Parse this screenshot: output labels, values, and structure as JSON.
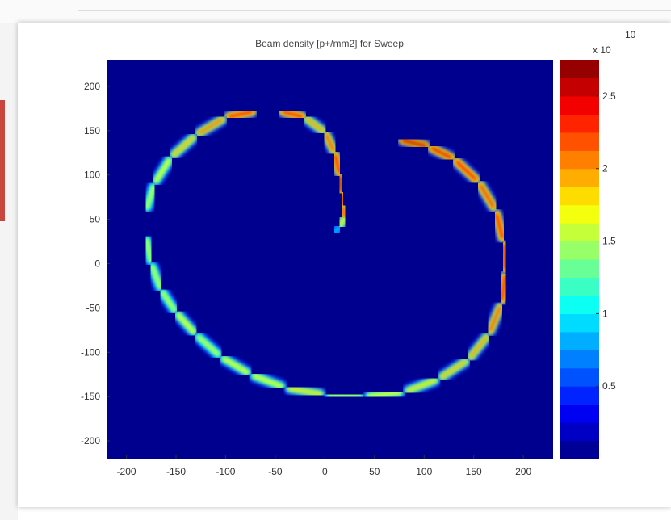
{
  "chart_data": {
    "type": "heatmap",
    "title": "Beam density [p+/mm2] for Sweep",
    "colorbar": {
      "multiplier": "x 10",
      "exponent": "10",
      "ticks": [
        "0.5",
        "1",
        "1.5",
        "2",
        "2.5"
      ],
      "tick_values": [
        0.5,
        1.0,
        1.5,
        2.0,
        2.5
      ],
      "range": [
        0.0,
        2.75
      ],
      "colormap": "jet"
    },
    "x_ticks": [
      "-200",
      "-150",
      "-100",
      "-50",
      "0",
      "50",
      "100",
      "150",
      "200"
    ],
    "y_ticks": [
      "200",
      "150",
      "100",
      "50",
      "0",
      "-50",
      "-100",
      "-150",
      "-200"
    ],
    "xlim": [
      -220,
      230
    ],
    "ylim": [
      -220,
      230
    ],
    "background_color": "#00008f",
    "sweep_path": {
      "description": "spiral sweep from center outward",
      "points": [
        [
          10,
          35
        ],
        [
          15,
          42
        ],
        [
          20,
          52
        ],
        [
          18,
          65
        ],
        [
          17,
          80
        ],
        [
          15,
          100
        ],
        [
          10,
          125
        ],
        [
          0,
          148
        ],
        [
          -20,
          165
        ],
        [
          -45,
          172
        ],
        [
          -70,
          172
        ],
        [
          -100,
          165
        ],
        [
          -130,
          145
        ],
        [
          -155,
          120
        ],
        [
          -172,
          90
        ],
        [
          -180,
          60
        ],
        [
          -180,
          30
        ],
        [
          -175,
          0
        ],
        [
          -165,
          -30
        ],
        [
          -150,
          -55
        ],
        [
          -130,
          -80
        ],
        [
          -105,
          -105
        ],
        [
          -75,
          -125
        ],
        [
          -40,
          -140
        ],
        [
          0,
          -148
        ],
        [
          40,
          -150
        ],
        [
          80,
          -145
        ],
        [
          115,
          -130
        ],
        [
          145,
          -108
        ],
        [
          165,
          -80
        ],
        [
          178,
          -45
        ],
        [
          182,
          -10
        ],
        [
          180,
          25
        ],
        [
          172,
          60
        ],
        [
          155,
          92
        ],
        [
          130,
          118
        ],
        [
          105,
          132
        ],
        [
          75,
          140
        ]
      ],
      "segment_weights": [
        0.9,
        1.8,
        2.3,
        2.5,
        2.6,
        2.4,
        2.2,
        2.0,
        2.4,
        2.5,
        2.4,
        2.1,
        1.9,
        1.7,
        1.6,
        1.5,
        1.6,
        1.6,
        1.6,
        1.7,
        1.6,
        1.7,
        1.7,
        1.8,
        1.6,
        1.7,
        1.8,
        1.9,
        2.0,
        2.2,
        2.4,
        2.5,
        2.4,
        2.3,
        2.4,
        2.5,
        2.6
      ]
    }
  }
}
